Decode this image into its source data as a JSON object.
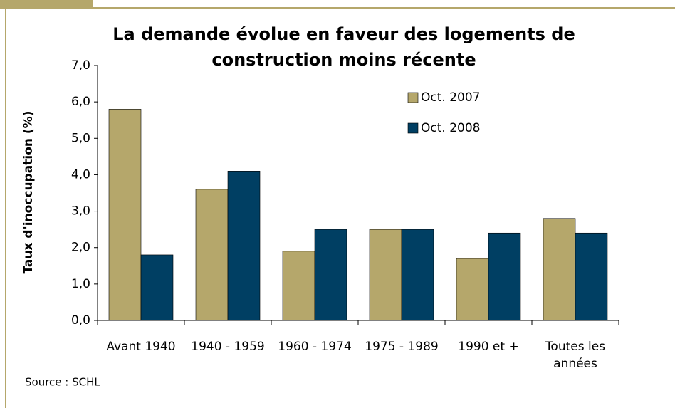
{
  "chart_data": {
    "type": "bar",
    "title": "La demande évolue en faveur des logements de construction moins récente",
    "y_label": "Taux d'inoccupation (%)",
    "source": "Source : SCHL",
    "categories": [
      "Avant 1940",
      "1940 - 1959",
      "1960 - 1974",
      "1975 - 1989",
      "1990 et +",
      "Toutes les années"
    ],
    "series": [
      {
        "name": "Oct. 2007",
        "color": "#b5a76b",
        "values": [
          5.8,
          3.6,
          1.9,
          2.5,
          1.7,
          2.8
        ]
      },
      {
        "name": "Oct. 2008",
        "color": "#003f63",
        "values": [
          1.8,
          4.1,
          2.5,
          2.5,
          2.4,
          2.4
        ]
      }
    ],
    "ylim": [
      0,
      7
    ],
    "yticks": [
      {
        "value": 0,
        "label": "0,0"
      },
      {
        "value": 1,
        "label": "1,0"
      },
      {
        "value": 2,
        "label": "2,0"
      },
      {
        "value": 3,
        "label": "3,0"
      },
      {
        "value": 4,
        "label": "4,0"
      },
      {
        "value": 5,
        "label": "5,0"
      },
      {
        "value": 6,
        "label": "6,0"
      },
      {
        "value": 7,
        "label": "7,0"
      }
    ],
    "grid": false
  }
}
